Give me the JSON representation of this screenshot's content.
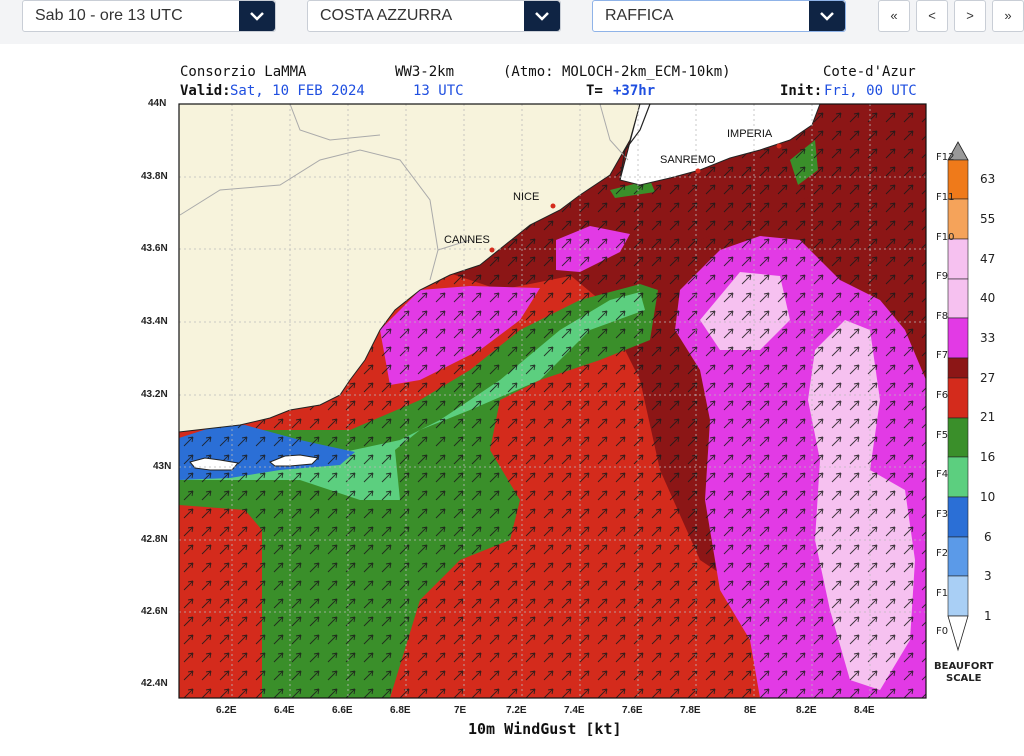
{
  "controls": {
    "date_select": "Sab 10 - ore 13 UTC",
    "area_select": "COSTA AZZURRA",
    "param_select": "RAFFICA",
    "nav": [
      "«",
      "<",
      ">",
      "»"
    ]
  },
  "map_header": {
    "provider": "Consorzio LaMMA",
    "model": "WW3-2km",
    "atmo": "(Atmo: MOLOCH-2km_ECM-10km)",
    "region": "Cote-d'Azur",
    "valid_label": "Valid:",
    "valid_date": "Sat, 10 FEB 2024",
    "valid_time": "13 UTC",
    "lead_label": "T=",
    "lead_value": "+37hr",
    "init_label": "Init:",
    "init_value": "Fri, 00 UTC"
  },
  "cities": [
    "IMPERIA",
    "SANREMO",
    "NICE",
    "CANNES"
  ],
  "y_ticks": [
    "44N",
    "43.8N",
    "43.6N",
    "43.4N",
    "43.2N",
    "43N",
    "42.8N",
    "42.6N",
    "42.4N"
  ],
  "x_ticks": [
    "6.2E",
    "6.4E",
    "6.6E",
    "6.8E",
    "7E",
    "7.2E",
    "7.4E",
    "7.6E",
    "7.8E",
    "8E",
    "8.2E",
    "8.4E"
  ],
  "x_title": "10m WindGust [kt]",
  "legend": {
    "values": [
      "63",
      "55",
      "47",
      "40",
      "33",
      "27",
      "21",
      "16",
      "10",
      "6",
      "3",
      "1"
    ],
    "beaufort": [
      "F12",
      "F11",
      "F10",
      "F9",
      "F8",
      "F7",
      "F6",
      "F5",
      "F4",
      "F3",
      "F2",
      "F1",
      "F0"
    ],
    "title_line1": "BEAUFORT",
    "title_line2": "SCALE",
    "colors": [
      "#999999",
      "#ef7a1a",
      "#f5a35a",
      "#f6c1f0",
      "#e23ae5",
      "#8c1616",
      "#d42b1c",
      "#3a8f2a",
      "#5ccf7f",
      "#2b6fd6",
      "#5b9ae8",
      "#a9cff5",
      "#ffffff"
    ]
  }
}
